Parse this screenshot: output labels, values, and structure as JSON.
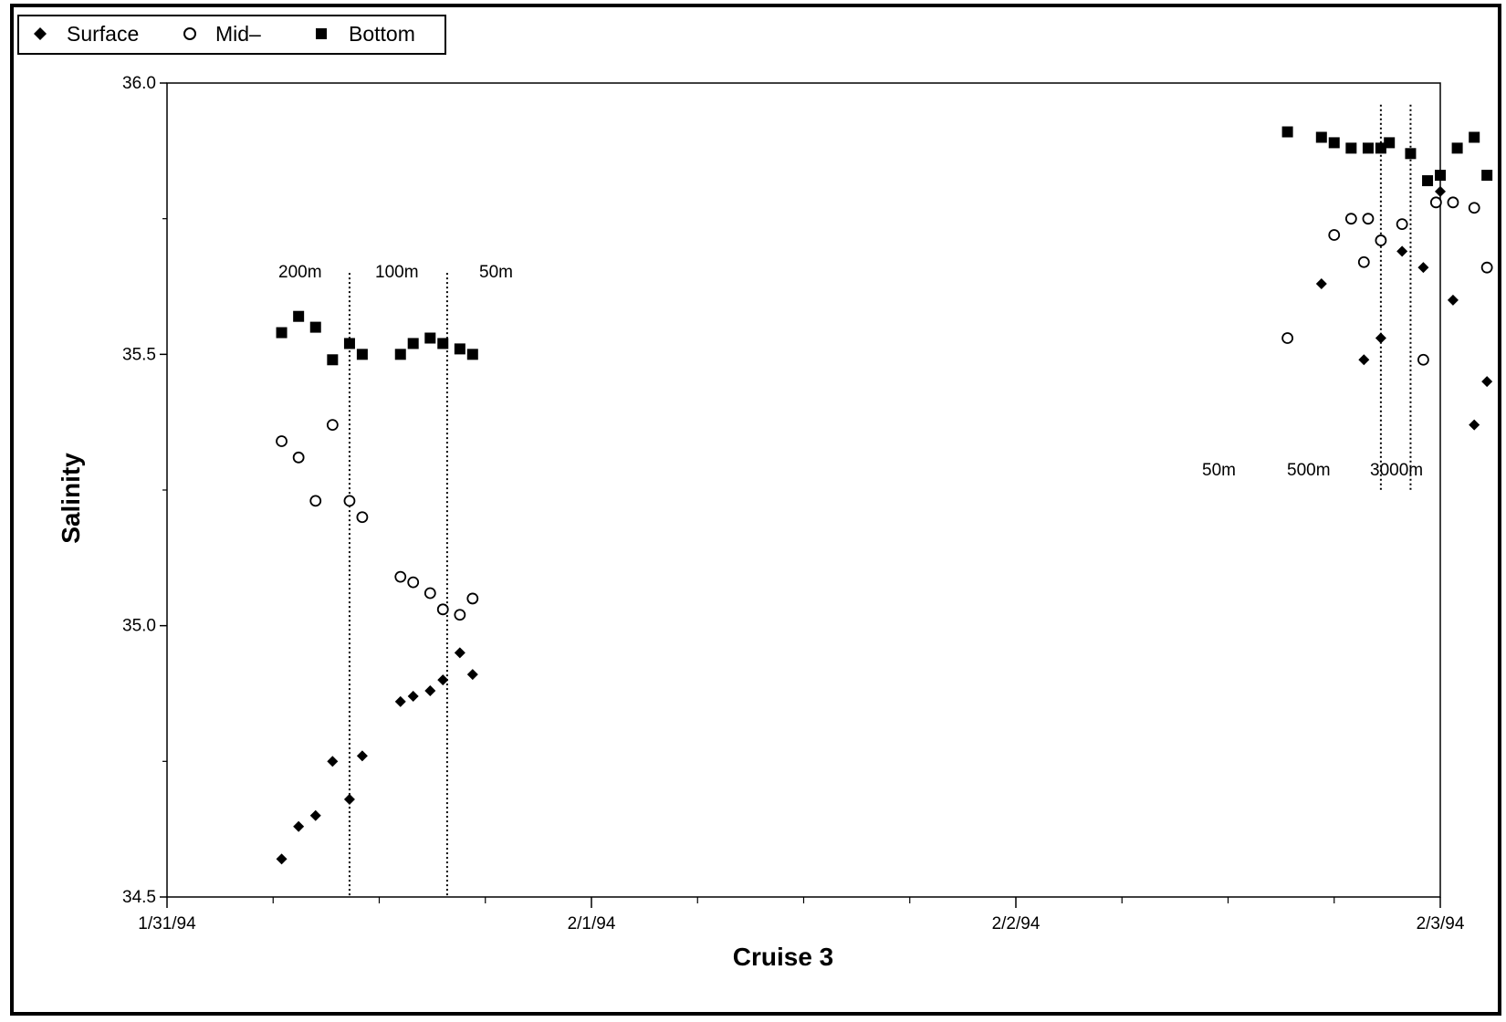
{
  "chart_data": {
    "type": "scatter",
    "title": "",
    "xlabel": "Cruise 3",
    "ylabel": "Salinity",
    "xlim": [
      "1/31/94",
      "2/3/94"
    ],
    "ylim": [
      34.5,
      36.0
    ],
    "x_tick_labels": [
      "1/31/94",
      "2/1/94",
      "2/2/94",
      "2/3/94"
    ],
    "y_tick_labels": [
      "34.5",
      "35.0",
      "35.5",
      "36.0"
    ],
    "y_ticks": [
      34.5,
      35.0,
      35.5,
      36.0
    ],
    "grid": false,
    "legend_position": "top-left",
    "legend": [
      {
        "name": "Surface",
        "marker": "diamond"
      },
      {
        "name": "Mid–",
        "marker": "circle-open"
      },
      {
        "name": "Bottom",
        "marker": "square"
      }
    ],
    "annotations": {
      "left_group": [
        "200m",
        "100m",
        "50m"
      ],
      "right_group": [
        "50m",
        "500m",
        "3000m"
      ]
    },
    "separators_x": [
      0.43,
      0.66,
      2.86,
      2.93
    ],
    "series": [
      {
        "name": "Surface",
        "marker": "diamond",
        "points": [
          {
            "x": 0.27,
            "y": 34.57
          },
          {
            "x": 0.31,
            "y": 34.63
          },
          {
            "x": 0.35,
            "y": 34.65
          },
          {
            "x": 0.39,
            "y": 34.75
          },
          {
            "x": 0.43,
            "y": 34.68
          },
          {
            "x": 0.46,
            "y": 34.76
          },
          {
            "x": 0.55,
            "y": 34.86
          },
          {
            "x": 0.58,
            "y": 34.87
          },
          {
            "x": 0.62,
            "y": 34.88
          },
          {
            "x": 0.65,
            "y": 34.9
          },
          {
            "x": 0.69,
            "y": 34.95
          },
          {
            "x": 0.72,
            "y": 34.91
          },
          {
            "x": 2.72,
            "y": 35.63
          },
          {
            "x": 2.82,
            "y": 35.49
          },
          {
            "x": 2.86,
            "y": 35.53
          },
          {
            "x": 2.91,
            "y": 35.69
          },
          {
            "x": 2.96,
            "y": 35.66
          },
          {
            "x": 3.0,
            "y": 35.8
          },
          {
            "x": 3.03,
            "y": 35.6
          },
          {
            "x": 3.08,
            "y": 35.37
          },
          {
            "x": 3.11,
            "y": 35.45
          }
        ]
      },
      {
        "name": "Mid–",
        "marker": "circle-open",
        "points": [
          {
            "x": 0.27,
            "y": 35.34
          },
          {
            "x": 0.31,
            "y": 35.31
          },
          {
            "x": 0.35,
            "y": 35.23
          },
          {
            "x": 0.39,
            "y": 35.37
          },
          {
            "x": 0.43,
            "y": 35.23
          },
          {
            "x": 0.46,
            "y": 35.2
          },
          {
            "x": 0.55,
            "y": 35.09
          },
          {
            "x": 0.58,
            "y": 35.08
          },
          {
            "x": 0.62,
            "y": 35.06
          },
          {
            "x": 0.65,
            "y": 35.03
          },
          {
            "x": 0.69,
            "y": 35.02
          },
          {
            "x": 0.72,
            "y": 35.05
          },
          {
            "x": 2.64,
            "y": 35.53
          },
          {
            "x": 2.75,
            "y": 35.72
          },
          {
            "x": 2.79,
            "y": 35.75
          },
          {
            "x": 2.83,
            "y": 35.75
          },
          {
            "x": 2.82,
            "y": 35.67
          },
          {
            "x": 2.86,
            "y": 35.71
          },
          {
            "x": 2.91,
            "y": 35.74
          },
          {
            "x": 2.96,
            "y": 35.49
          },
          {
            "x": 2.99,
            "y": 35.78
          },
          {
            "x": 3.03,
            "y": 35.78
          },
          {
            "x": 3.08,
            "y": 35.77
          },
          {
            "x": 3.11,
            "y": 35.66
          }
        ]
      },
      {
        "name": "Bottom",
        "marker": "square",
        "points": [
          {
            "x": 0.27,
            "y": 35.54
          },
          {
            "x": 0.31,
            "y": 35.57
          },
          {
            "x": 0.35,
            "y": 35.55
          },
          {
            "x": 0.39,
            "y": 35.49
          },
          {
            "x": 0.43,
            "y": 35.52
          },
          {
            "x": 0.46,
            "y": 35.5
          },
          {
            "x": 0.55,
            "y": 35.5
          },
          {
            "x": 0.58,
            "y": 35.52
          },
          {
            "x": 0.62,
            "y": 35.53
          },
          {
            "x": 0.65,
            "y": 35.52
          },
          {
            "x": 0.69,
            "y": 35.51
          },
          {
            "x": 0.72,
            "y": 35.5
          },
          {
            "x": 2.64,
            "y": 35.91
          },
          {
            "x": 2.72,
            "y": 35.9
          },
          {
            "x": 2.75,
            "y": 35.89
          },
          {
            "x": 2.79,
            "y": 35.88
          },
          {
            "x": 2.83,
            "y": 35.88
          },
          {
            "x": 2.86,
            "y": 35.88
          },
          {
            "x": 2.88,
            "y": 35.89
          },
          {
            "x": 2.93,
            "y": 35.87
          },
          {
            "x": 2.97,
            "y": 35.82
          },
          {
            "x": 3.0,
            "y": 35.83
          },
          {
            "x": 3.04,
            "y": 35.88
          },
          {
            "x": 3.08,
            "y": 35.9
          },
          {
            "x": 3.11,
            "y": 35.83
          }
        ]
      }
    ]
  }
}
